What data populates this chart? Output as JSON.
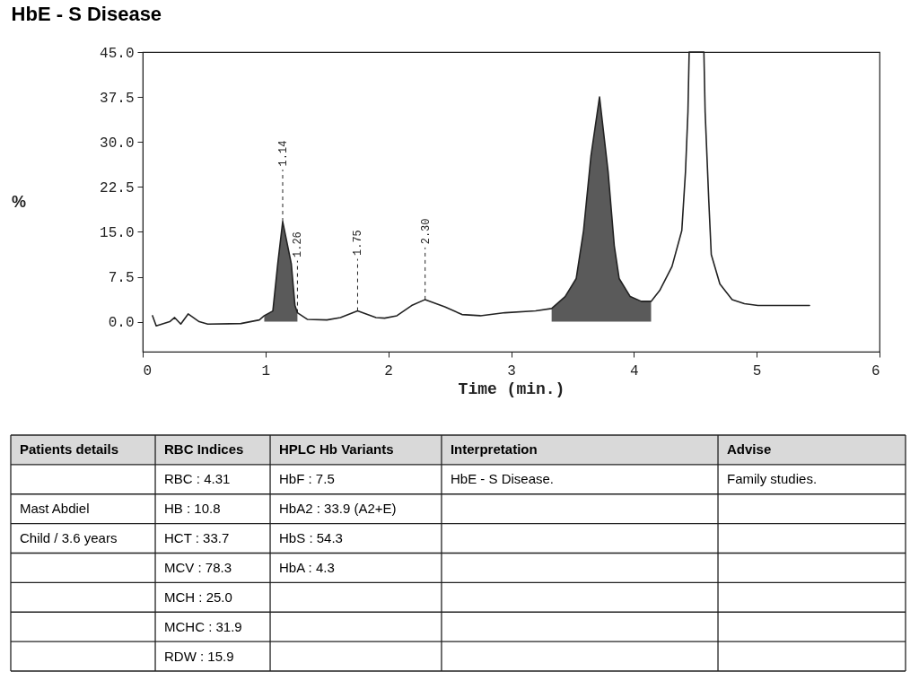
{
  "chart_data": [
    {
      "type": "line",
      "title": "HbE - S Disease",
      "xlabel": "Time (min.)",
      "ylabel": "%",
      "xlim": [
        0,
        6
      ],
      "xticks": [
        0,
        1,
        2,
        3,
        4,
        5,
        6
      ],
      "ylim": [
        -5,
        45
      ],
      "yticks": [
        {
          "value": 0,
          "label": "0.0"
        },
        7.5,
        {
          "value": 15,
          "label": "15.0"
        },
        22.5,
        {
          "value": 30,
          "label": "30.0"
        },
        37.5,
        {
          "value": 45,
          "label": "45.0"
        }
      ],
      "series": [
        {
          "type": "area",
          "color": "#5a5a5a",
          "x": [
            0.99,
            1.06,
            1.1,
            1.14,
            1.21,
            1.24,
            1.26
          ],
          "values": [
            1.0,
            1.8,
            9.7,
            16.7,
            9.7,
            2.7,
            1.5
          ]
        },
        {
          "type": "area",
          "color": "#5a5a5a",
          "x": [
            3.33,
            3.44,
            3.53,
            3.59,
            3.65,
            3.72,
            3.79,
            3.84,
            3.88,
            3.97,
            4.06,
            4.14
          ],
          "values": [
            2.2,
            4.2,
            7.2,
            15.2,
            27.6,
            37.5,
            25.0,
            12.7,
            7.2,
            4.2,
            3.4,
            3.4
          ]
        },
        {
          "type": "line",
          "color": "#222222",
          "x": [
            0.08,
            0.11,
            0.22,
            0.26,
            0.31,
            0.37,
            0.46,
            0.53,
            0.8,
            0.95,
            0.99,
            1.06,
            1.1,
            1.14,
            1.21,
            1.24,
            1.26,
            1.34,
            1.5,
            1.61,
            1.75,
            1.9,
            1.97,
            2.07,
            2.19,
            2.3,
            2.46,
            2.6,
            2.75,
            2.95,
            3.2,
            3.33,
            3.44,
            3.53,
            3.59,
            3.65,
            3.72,
            3.79,
            3.84,
            3.88,
            3.97,
            4.06,
            4.14,
            4.21,
            4.31,
            4.39,
            4.42,
            4.44,
            4.45,
            4.57,
            4.58,
            4.61,
            4.63,
            4.7,
            4.8,
            4.9,
            5.01,
            5.43
          ],
          "values": [
            1.0,
            -0.7,
            0.0,
            0.7,
            -0.4,
            1.3,
            0.0,
            -0.4,
            -0.3,
            0.3,
            1.0,
            1.8,
            9.7,
            16.7,
            9.7,
            2.7,
            1.5,
            0.4,
            0.3,
            0.7,
            1.8,
            0.7,
            0.6,
            1.0,
            2.7,
            3.7,
            2.5,
            1.2,
            1.0,
            1.5,
            1.8,
            2.2,
            4.2,
            7.2,
            15.2,
            27.6,
            37.5,
            25.0,
            12.7,
            7.2,
            4.2,
            3.4,
            3.4,
            5.2,
            9.2,
            15.2,
            25.0,
            35.0,
            45.0,
            45.0,
            35.0,
            20.1,
            11.2,
            6.3,
            3.7,
            3.0,
            2.7,
            2.7
          ]
        }
      ],
      "annotations": [
        {
          "text": "1.14",
          "x": 1.14,
          "y": 16.7
        },
        {
          "text": "1.26",
          "x": 1.26,
          "y": 1.5
        },
        {
          "text": "1.75",
          "x": 1.75,
          "y": 1.8
        },
        {
          "text": "2.30",
          "x": 2.3,
          "y": 3.7
        }
      ]
    },
    {
      "type": "other",
      "categories": [
        "Patients details",
        "RBC Indices",
        "HPLC Hb Variants",
        "Interpretation",
        "Advise"
      ],
      "cell_labels": [
        [
          null,
          "RBC : 4.31",
          "HbF : 7.5",
          "HbE - S Disease.",
          "Family studies."
        ],
        [
          "Mast Abdiel",
          "HB : 10.8",
          "HbA2 : 33.9 (A2+E)",
          null,
          null
        ],
        [
          "Child / 3.6 years",
          "HCT : 33.7",
          "HbS : 54.3",
          null,
          null
        ],
        [
          null,
          "MCV : 78.3",
          "HbA : 4.3",
          null,
          null
        ],
        [
          null,
          "MCH : 25.0",
          null,
          null,
          null
        ],
        [
          null,
          "MCHC : 31.9",
          null,
          null,
          null
        ],
        [
          null,
          "RDW : 15.9",
          null,
          null,
          null
        ]
      ]
    }
  ]
}
